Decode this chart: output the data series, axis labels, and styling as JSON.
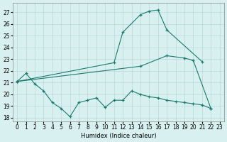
{
  "xlabel": "Humidex (Indice chaleur)",
  "line_color": "#1a7a6e",
  "bg_color": "#d8f0f0",
  "grid_color": "#b8d8d8",
  "ylim": [
    17.7,
    27.8
  ],
  "yticks": [
    18,
    19,
    20,
    21,
    22,
    23,
    24,
    25,
    26,
    27
  ],
  "xlim": [
    -0.5,
    23.5
  ],
  "xticks": [
    0,
    1,
    2,
    3,
    4,
    5,
    6,
    7,
    8,
    9,
    10,
    11,
    12,
    13,
    14,
    15,
    16,
    17,
    18,
    19,
    20,
    21,
    22,
    23
  ],
  "series": [
    {
      "x": [
        0,
        1,
        2,
        3,
        4,
        5,
        6,
        7,
        8,
        9,
        10,
        11,
        12,
        13,
        14,
        15,
        16,
        17,
        18,
        19,
        20,
        21,
        22
      ],
      "y": [
        21.1,
        21.8,
        20.9,
        20.3,
        19.3,
        18.8,
        18.1,
        19.3,
        19.5,
        19.7,
        18.9,
        19.5,
        19.5,
        20.3,
        20.0,
        19.8,
        19.7,
        19.5,
        19.4,
        19.3,
        19.2,
        19.1,
        18.8
      ]
    },
    {
      "x": [
        0,
        11,
        12,
        14,
        15,
        16,
        17,
        21
      ],
      "y": [
        21.1,
        22.7,
        25.3,
        26.8,
        27.1,
        27.2,
        25.5,
        22.8
      ]
    },
    {
      "x": [
        0,
        14,
        17,
        19,
        20,
        22
      ],
      "y": [
        21.1,
        22.4,
        23.3,
        23.1,
        22.9,
        18.8
      ]
    }
  ]
}
